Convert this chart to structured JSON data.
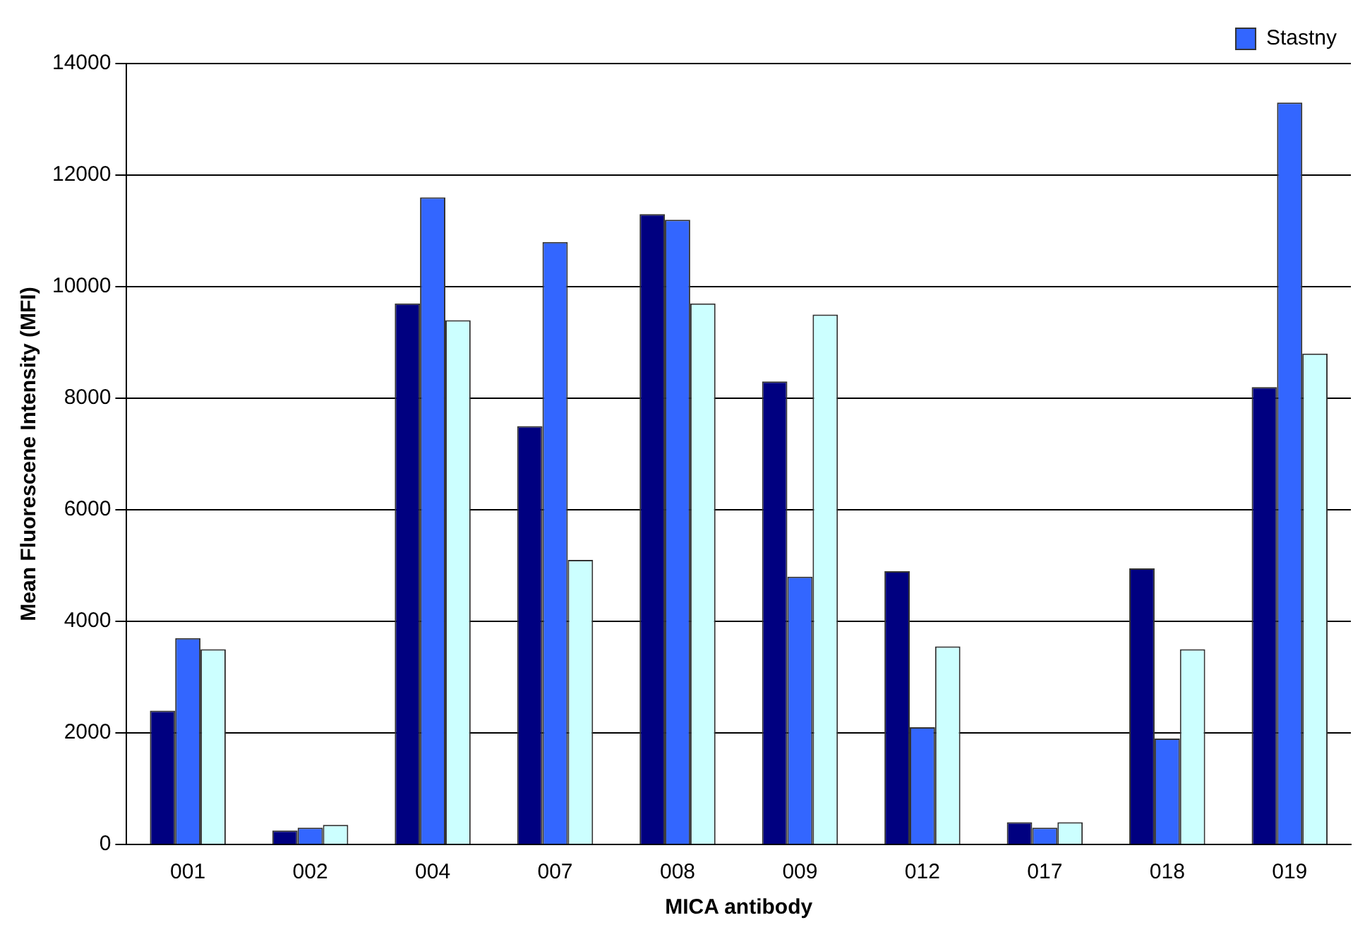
{
  "chart_data": {
    "type": "bar",
    "xlabel": "MICA antibody",
    "ylabel": "Mean Fluorescene Intensity (MFI)",
    "categories": [
      "001",
      "002",
      "004",
      "007",
      "008",
      "009",
      "012",
      "017",
      "018",
      "019"
    ],
    "series": [
      {
        "color": "#000080",
        "values": [
          2400,
          250,
          9700,
          7500,
          11300,
          8300,
          4900,
          400,
          4950,
          8200
        ]
      },
      {
        "name": "Stastny",
        "color": "#3366ff",
        "values": [
          3700,
          300,
          11600,
          10800,
          11200,
          4800,
          2100,
          300,
          1900,
          13300
        ]
      },
      {
        "color": "#ccffff",
        "values": [
          3500,
          350,
          9400,
          5100,
          9700,
          9500,
          3550,
          400,
          3500,
          8800
        ]
      }
    ],
    "ylim": [
      0,
      14000
    ],
    "yticks": [
      0,
      2000,
      4000,
      6000,
      8000,
      10000,
      12000,
      14000
    ],
    "grid": "y",
    "legend": "top right"
  }
}
